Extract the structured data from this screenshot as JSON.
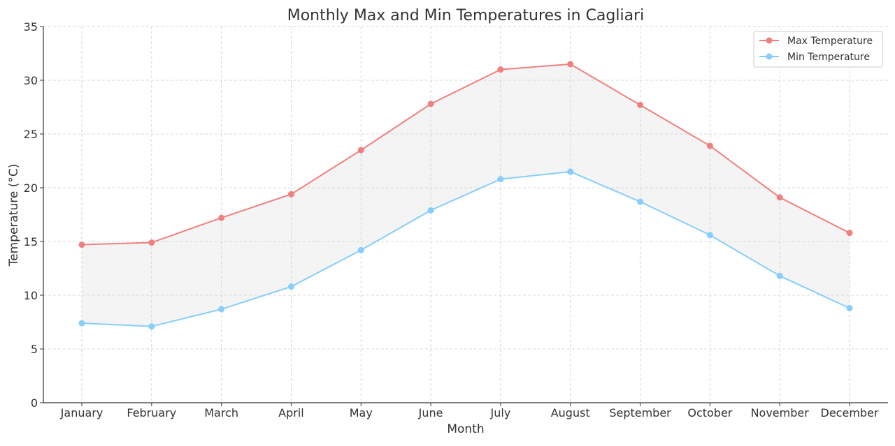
{
  "chart_data": {
    "type": "line",
    "title": "Monthly Max and Min Temperatures in Cagliari",
    "xlabel": "Month",
    "ylabel": "Temperature (°C)",
    "ylim": [
      0,
      35
    ],
    "yticks": [
      "0",
      "5",
      "10",
      "15",
      "20",
      "25",
      "30",
      "35"
    ],
    "grid": true,
    "legend_position": "top-right",
    "categories": [
      "January",
      "February",
      "March",
      "April",
      "May",
      "June",
      "July",
      "August",
      "September",
      "October",
      "November",
      "December"
    ],
    "series": [
      {
        "name": "Max Temperature",
        "color": "#f08080",
        "values": [
          14.7,
          14.9,
          17.2,
          19.4,
          23.5,
          27.8,
          31.0,
          31.5,
          27.7,
          23.9,
          19.1,
          15.8
        ]
      },
      {
        "name": "Min Temperature",
        "color": "#87cefa",
        "values": [
          7.4,
          7.1,
          8.7,
          10.8,
          14.2,
          17.9,
          20.8,
          21.5,
          18.7,
          15.6,
          11.8,
          8.8
        ]
      }
    ],
    "fill_between_color": "#d3d3d3"
  }
}
